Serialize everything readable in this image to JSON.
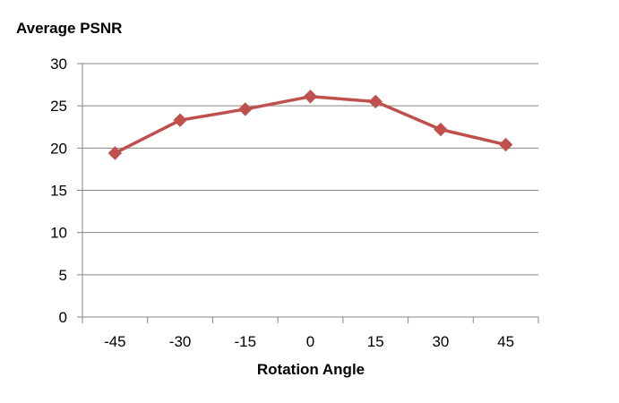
{
  "chart_data": {
    "type": "line",
    "title": "Average PSNR",
    "xlabel": "Rotation Angle",
    "ylabel": "",
    "categories": [
      "-45",
      "-30",
      "-15",
      "0",
      "15",
      "30",
      "45"
    ],
    "series": [
      {
        "values": [
          19.4,
          23.3,
          24.6,
          26.1,
          25.5,
          22.2,
          20.4
        ]
      }
    ],
    "ylim": [
      0,
      30
    ],
    "yticks": [
      "0",
      "5",
      "10",
      "15",
      "20",
      "25",
      "30"
    ],
    "grid": true,
    "legend": "none",
    "colors": {
      "line": "#C0504D",
      "marker": "#C0504D",
      "grid": "#868686",
      "axis": "#868686"
    },
    "marker": "diamond"
  }
}
